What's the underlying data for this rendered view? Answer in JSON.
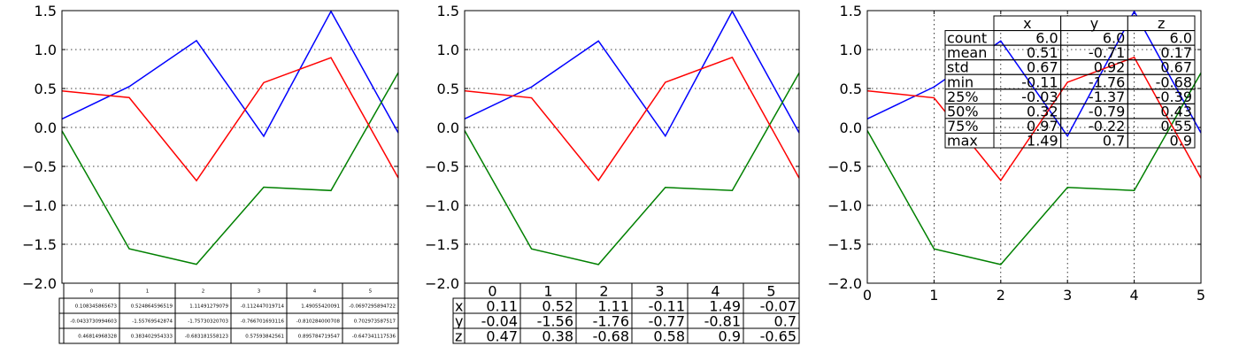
{
  "chart_data": [
    {
      "type": "line",
      "x": [
        0,
        1,
        2,
        3,
        4,
        5
      ],
      "ylim": [
        -2.0,
        1.5
      ],
      "xlim": [
        0,
        5
      ],
      "y_ticks": [
        "1.5",
        "1.0",
        "0.5",
        "0.0",
        "−0.5",
        "−1.0",
        "−1.5",
        "−2.0"
      ],
      "x_ticks": [],
      "grid": "y",
      "series": [
        {
          "key": "x",
          "color": "#0000ff",
          "values": [
            0.108345865673,
            0.524864596519,
            1.11491279079,
            -0.112447019714,
            1.49055420091,
            -0.0697295894722
          ]
        },
        {
          "key": "y",
          "color": "#008000",
          "values": [
            -0.0433730994603,
            -1.55769542874,
            -1.75730320703,
            -0.766701693116,
            -0.810284000708,
            0.702973587517
          ]
        },
        {
          "key": "z",
          "color": "#ff0000",
          "values": [
            0.46814968328,
            0.383402954333,
            -0.683181558123,
            0.57593842561,
            0.895784719547,
            -0.647341117536
          ]
        }
      ],
      "table": {
        "col_labels": [
          "0",
          "1",
          "2",
          "3",
          "4",
          "5"
        ],
        "rows": [
          [
            "0.108345865673",
            "0.524864596519",
            "1.11491279079",
            "-0.112447019714",
            "1.49055420091",
            "-0.0697295894722"
          ],
          [
            "-0.0433730994603",
            "-1.55769542874",
            "-1.75730320703",
            "-0.766701693116",
            "-0.810284000708",
            "0.702973587517"
          ],
          [
            "0.46814968328",
            "0.383402954333",
            "-0.683181558123",
            "0.57593842561",
            "0.895784719547",
            "-0.647341117536"
          ]
        ]
      }
    },
    {
      "type": "line",
      "x": [
        0,
        1,
        2,
        3,
        4,
        5
      ],
      "ylim": [
        -2.0,
        1.5
      ],
      "xlim": [
        0,
        5
      ],
      "y_ticks": [
        "1.5",
        "1.0",
        "0.5",
        "0.0",
        "−0.5",
        "−1.0",
        "−1.5",
        "−2.0"
      ],
      "x_ticks": [],
      "grid": "y",
      "series": [
        {
          "key": "x",
          "color": "#0000ff",
          "values": [
            0.11,
            0.52,
            1.11,
            -0.11,
            1.49,
            -0.07
          ]
        },
        {
          "key": "y",
          "color": "#008000",
          "values": [
            -0.04,
            -1.56,
            -1.76,
            -0.77,
            -0.81,
            0.7
          ]
        },
        {
          "key": "z",
          "color": "#ff0000",
          "values": [
            0.47,
            0.38,
            -0.68,
            0.58,
            0.9,
            -0.65
          ]
        }
      ],
      "table": {
        "col_labels": [
          "0",
          "1",
          "2",
          "3",
          "4",
          "5"
        ],
        "row_labels": [
          "x",
          "y",
          "z"
        ],
        "rows": [
          [
            "0.11",
            "0.52",
            "1.11",
            "-0.11",
            "1.49",
            "-0.07"
          ],
          [
            "-0.04",
            "-1.56",
            "-1.76",
            "-0.77",
            "-0.81",
            "0.7"
          ],
          [
            "0.47",
            "0.38",
            "-0.68",
            "0.58",
            "0.9",
            "-0.65"
          ]
        ]
      }
    },
    {
      "type": "line",
      "x": [
        0,
        1,
        2,
        3,
        4,
        5
      ],
      "ylim": [
        -2.0,
        1.5
      ],
      "xlim": [
        0,
        5
      ],
      "y_ticks": [
        "1.5",
        "1.0",
        "0.5",
        "0.0",
        "−0.5",
        "−1.0",
        "−1.5",
        "−2.0"
      ],
      "x_ticks": [
        "0",
        "1",
        "2",
        "3",
        "4",
        "5"
      ],
      "grid": "both",
      "series": [
        {
          "key": "x",
          "color": "#0000ff",
          "values": [
            0.11,
            0.52,
            1.11,
            -0.11,
            1.49,
            -0.07
          ]
        },
        {
          "key": "y",
          "color": "#008000",
          "values": [
            -0.04,
            -1.56,
            -1.76,
            -0.77,
            -0.81,
            0.7
          ]
        },
        {
          "key": "z",
          "color": "#ff0000",
          "values": [
            0.47,
            0.38,
            -0.68,
            0.58,
            0.9,
            -0.65
          ]
        }
      ],
      "table": {
        "col_labels": [
          "x",
          "y",
          "z"
        ],
        "row_labels": [
          "count",
          "mean",
          "std",
          "min",
          "25%",
          "50%",
          "75%",
          "max"
        ],
        "rows": [
          [
            "6.0",
            "6.0",
            "6.0"
          ],
          [
            "0.51",
            "-0.71",
            "0.17"
          ],
          [
            "0.67",
            "0.92",
            "0.67"
          ],
          [
            "-0.11",
            "-1.76",
            "-0.68"
          ],
          [
            "-0.03",
            "-1.37",
            "-0.39"
          ],
          [
            "0.32",
            "-0.79",
            "0.43"
          ],
          [
            "0.97",
            "-0.22",
            "0.55"
          ],
          [
            "1.49",
            "0.7",
            "0.9"
          ]
        ]
      }
    }
  ]
}
